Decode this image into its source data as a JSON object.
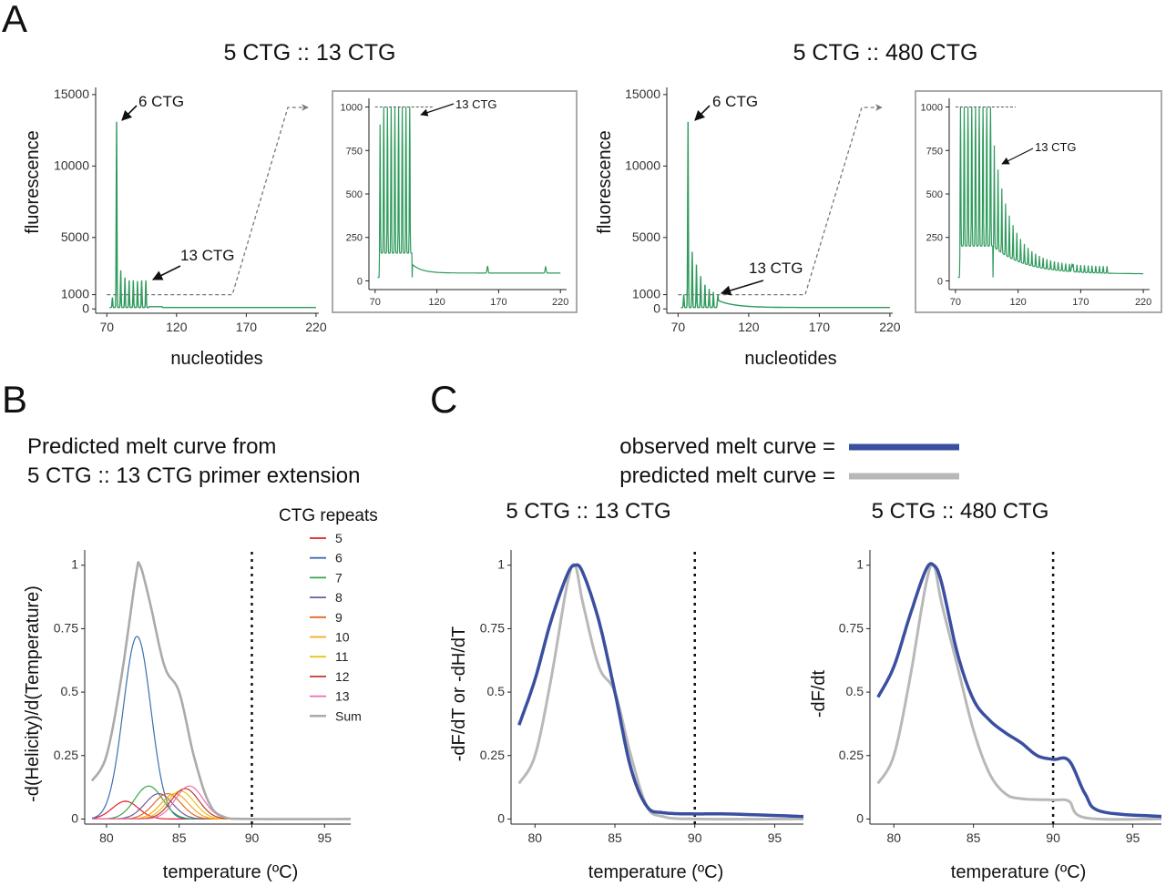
{
  "panels": {
    "A": "A",
    "B": "B",
    "C": "C"
  },
  "colors": {
    "green": "#2e9a5c",
    "observed": "#3a4fa0",
    "predicted": "#b8b8b8",
    "dashed": "#777777",
    "c5": "#e21e26",
    "c6": "#3b6fb0",
    "c7": "#3aa34b",
    "c8": "#6e5c9b",
    "c9": "#e7672a",
    "c10": "#f6a81b",
    "c11": "#e9c21b",
    "c12": "#c0392b",
    "c13": "#e96fb5",
    "sum": "#aaaaaa"
  },
  "panelA": {
    "left": {
      "title": "5 CTG :: 13 CTG",
      "ylabel": "fluorescence",
      "xlabel": "nucleotides",
      "peak_label": "6 CTG",
      "arrow_label": "13 CTG",
      "inset_label": "13 CTG"
    },
    "right": {
      "title": "5 CTG :: 480 CTG",
      "ylabel": "fluorescence",
      "xlabel": "nucleotides",
      "peak_label": "6 CTG",
      "arrow_label": "13 CTG",
      "inset_label": "13 CTG"
    }
  },
  "panelB": {
    "title_line1": "Predicted melt curve from",
    "title_line2": "5 CTG :: 13 CTG primer extension",
    "ylabel": "-d(Helicity)/d(Temperature)",
    "xlabel": "temperature (ºC)",
    "legend_title": "CTG repeats",
    "legend": [
      "5",
      "6",
      "7",
      "8",
      "9",
      "10",
      "11",
      "12",
      "13",
      "Sum"
    ]
  },
  "panelC": {
    "legend_observed": "observed melt curve =",
    "legend_predicted": "predicted melt curve =",
    "left": {
      "title": "5 CTG :: 13 CTG",
      "ylabel": "-dF/dT or -dH/dT",
      "xlabel": "temperature (ºC)"
    },
    "right": {
      "title": "5 CTG :: 480 CTG",
      "ylabel": "-dF/dt",
      "xlabel": "temperature (ºC)"
    }
  },
  "chart_data": [
    {
      "id": "A-left-main",
      "type": "line",
      "title": "5 CTG :: 13 CTG",
      "xlabel": "nucleotides",
      "ylabel": "fluorescence",
      "xlim": [
        62,
        222
      ],
      "ylim": [
        -300,
        15500
      ],
      "xticks": [
        70,
        120,
        170,
        220
      ],
      "yticks": [
        0,
        1000,
        5000,
        10000,
        15000
      ],
      "peaks": [
        {
          "x": 74,
          "y": 700
        },
        {
          "x": 77,
          "y": 13000
        },
        {
          "x": 80,
          "y": 2600
        },
        {
          "x": 83,
          "y": 2100
        },
        {
          "x": 86,
          "y": 1900
        },
        {
          "x": 89,
          "y": 1900
        },
        {
          "x": 92,
          "y": 1850
        },
        {
          "x": 95,
          "y": 1900
        },
        {
          "x": 98,
          "y": 1900
        }
      ],
      "baseline": 100,
      "annotations": [
        "6 CTG",
        "13 CTG"
      ]
    },
    {
      "id": "A-left-inset",
      "type": "line",
      "xlim": [
        65,
        225
      ],
      "ylim": [
        -50,
        1050
      ],
      "xticks": [
        70,
        120,
        170,
        220
      ],
      "yticks": [
        0,
        250,
        500,
        750,
        1000
      ],
      "clip": 1000,
      "peaks": [
        {
          "x": 74,
          "y": 880
        },
        {
          "x": 77,
          "y": 1000
        },
        {
          "x": 80,
          "y": 1000
        },
        {
          "x": 83,
          "y": 1000
        },
        {
          "x": 86,
          "y": 1000
        },
        {
          "x": 89,
          "y": 1000
        },
        {
          "x": 92,
          "y": 1000
        },
        {
          "x": 95,
          "y": 1000
        },
        {
          "x": 98,
          "y": 1000
        }
      ],
      "annotations": [
        "13 CTG"
      ]
    },
    {
      "id": "A-right-main",
      "type": "line",
      "title": "5 CTG :: 480 CTG",
      "xlabel": "nucleotides",
      "ylabel": "fluorescence",
      "xlim": [
        62,
        222
      ],
      "ylim": [
        -300,
        15500
      ],
      "xticks": [
        70,
        120,
        170,
        220
      ],
      "yticks": [
        0,
        1000,
        5000,
        10000,
        15000
      ],
      "peaks": [
        {
          "x": 74,
          "y": 900
        },
        {
          "x": 77,
          "y": 13000
        },
        {
          "x": 80,
          "y": 3900
        },
        {
          "x": 83,
          "y": 3000
        },
        {
          "x": 86,
          "y": 2200
        },
        {
          "x": 89,
          "y": 1600
        },
        {
          "x": 92,
          "y": 1300
        },
        {
          "x": 95,
          "y": 1100
        },
        {
          "x": 98,
          "y": 700
        }
      ],
      "annotations": [
        "6 CTG",
        "13 CTG"
      ]
    },
    {
      "id": "A-right-inset",
      "type": "line",
      "xlim": [
        65,
        225
      ],
      "ylim": [
        -50,
        1050
      ],
      "xticks": [
        70,
        120,
        170,
        220
      ],
      "yticks": [
        0,
        250,
        500,
        750,
        1000
      ],
      "clip": 1000,
      "annotations": [
        "13 CTG"
      ]
    },
    {
      "id": "B",
      "type": "line",
      "xlabel": "temperature (ºC)",
      "ylabel": "-d(Helicity)/d(Temperature)",
      "xlim": [
        78.5,
        96.8
      ],
      "ylim": [
        -0.02,
        1.06
      ],
      "xticks": [
        80,
        85,
        90,
        95
      ],
      "yticks": [
        0,
        0.25,
        0.5,
        0.75,
        1
      ],
      "vline": 90,
      "series": [
        {
          "name": "5",
          "mu": 81.3,
          "sigma": 0.9,
          "amp": 0.07
        },
        {
          "name": "6",
          "mu": 82.1,
          "sigma": 0.95,
          "amp": 0.72
        },
        {
          "name": "7",
          "mu": 82.9,
          "sigma": 0.95,
          "amp": 0.13
        },
        {
          "name": "8",
          "mu": 83.6,
          "sigma": 0.95,
          "amp": 0.1
        },
        {
          "name": "9",
          "mu": 84.2,
          "sigma": 0.95,
          "amp": 0.1
        },
        {
          "name": "10",
          "mu": 84.7,
          "sigma": 0.95,
          "amp": 0.1
        },
        {
          "name": "11",
          "mu": 85.1,
          "sigma": 0.95,
          "amp": 0.11
        },
        {
          "name": "12",
          "mu": 85.4,
          "sigma": 0.95,
          "amp": 0.12
        },
        {
          "name": "13",
          "mu": 85.7,
          "sigma": 0.95,
          "amp": 0.13
        },
        {
          "name": "Sum",
          "points": [
            [
              79,
              0.15
            ],
            [
              80,
              0.25
            ],
            [
              81,
              0.55
            ],
            [
              82,
              0.95
            ],
            [
              82.3,
              1.0
            ],
            [
              83,
              0.85
            ],
            [
              84,
              0.6
            ],
            [
              85,
              0.5
            ],
            [
              86,
              0.25
            ],
            [
              87,
              0.07
            ],
            [
              88,
              0.01
            ],
            [
              90,
              0
            ],
            [
              96.8,
              0
            ]
          ]
        }
      ]
    },
    {
      "id": "C-left",
      "type": "line",
      "title": "5 CTG :: 13 CTG",
      "xlabel": "temperature (ºC)",
      "ylabel": "-dF/dT or -dH/dT",
      "xlim": [
        78.5,
        96.8
      ],
      "ylim": [
        -0.02,
        1.06
      ],
      "xticks": [
        80,
        85,
        90,
        95
      ],
      "yticks": [
        0,
        0.25,
        0.5,
        0.75,
        1
      ],
      "vline": 90,
      "series": [
        {
          "name": "observed melt curve",
          "points": [
            [
              79,
              0.37
            ],
            [
              80,
              0.55
            ],
            [
              81,
              0.78
            ],
            [
              82,
              0.96
            ],
            [
              82.5,
              1.0
            ],
            [
              83,
              0.97
            ],
            [
              84,
              0.78
            ],
            [
              85,
              0.5
            ],
            [
              86,
              0.2
            ],
            [
              87,
              0.05
            ],
            [
              88,
              0.025
            ],
            [
              90,
              0.02
            ],
            [
              92,
              0.02
            ],
            [
              96.8,
              0.01
            ]
          ]
        },
        {
          "name": "predicted melt curve",
          "points": [
            [
              79,
              0.14
            ],
            [
              80,
              0.25
            ],
            [
              81,
              0.55
            ],
            [
              82,
              0.92
            ],
            [
              82.5,
              1.0
            ],
            [
              83,
              0.85
            ],
            [
              84,
              0.6
            ],
            [
              85,
              0.5
            ],
            [
              86,
              0.25
            ],
            [
              87,
              0.05
            ],
            [
              88,
              0.01
            ],
            [
              90,
              0.0
            ],
            [
              96.8,
              0.0
            ]
          ]
        }
      ]
    },
    {
      "id": "C-right",
      "type": "line",
      "title": "5 CTG :: 480 CTG",
      "xlabel": "temperature (ºC)",
      "ylabel": "-dF/dt",
      "xlim": [
        78.5,
        96.8
      ],
      "ylim": [
        -0.02,
        1.06
      ],
      "xticks": [
        80,
        85,
        90,
        95
      ],
      "yticks": [
        0,
        0.25,
        0.5,
        0.75,
        1
      ],
      "vline": 90,
      "series": [
        {
          "name": "observed melt curve",
          "points": [
            [
              79,
              0.48
            ],
            [
              80,
              0.6
            ],
            [
              81,
              0.8
            ],
            [
              82,
              0.98
            ],
            [
              82.5,
              1.0
            ],
            [
              83,
              0.93
            ],
            [
              84,
              0.65
            ],
            [
              85,
              0.47
            ],
            [
              86,
              0.39
            ],
            [
              87,
              0.34
            ],
            [
              88,
              0.3
            ],
            [
              89,
              0.25
            ],
            [
              90,
              0.235
            ],
            [
              91,
              0.23
            ],
            [
              92,
              0.1
            ],
            [
              93,
              0.03
            ],
            [
              96.8,
              0.01
            ]
          ]
        },
        {
          "name": "predicted melt curve",
          "points": [
            [
              79,
              0.14
            ],
            [
              80,
              0.25
            ],
            [
              81,
              0.55
            ],
            [
              82,
              0.92
            ],
            [
              82.5,
              1.0
            ],
            [
              83,
              0.85
            ],
            [
              84,
              0.6
            ],
            [
              85,
              0.35
            ],
            [
              86,
              0.18
            ],
            [
              87,
              0.1
            ],
            [
              88,
              0.08
            ],
            [
              90,
              0.075
            ],
            [
              91,
              0.07
            ],
            [
              92,
              0.005
            ],
            [
              96.8,
              0.0
            ]
          ]
        }
      ]
    }
  ]
}
